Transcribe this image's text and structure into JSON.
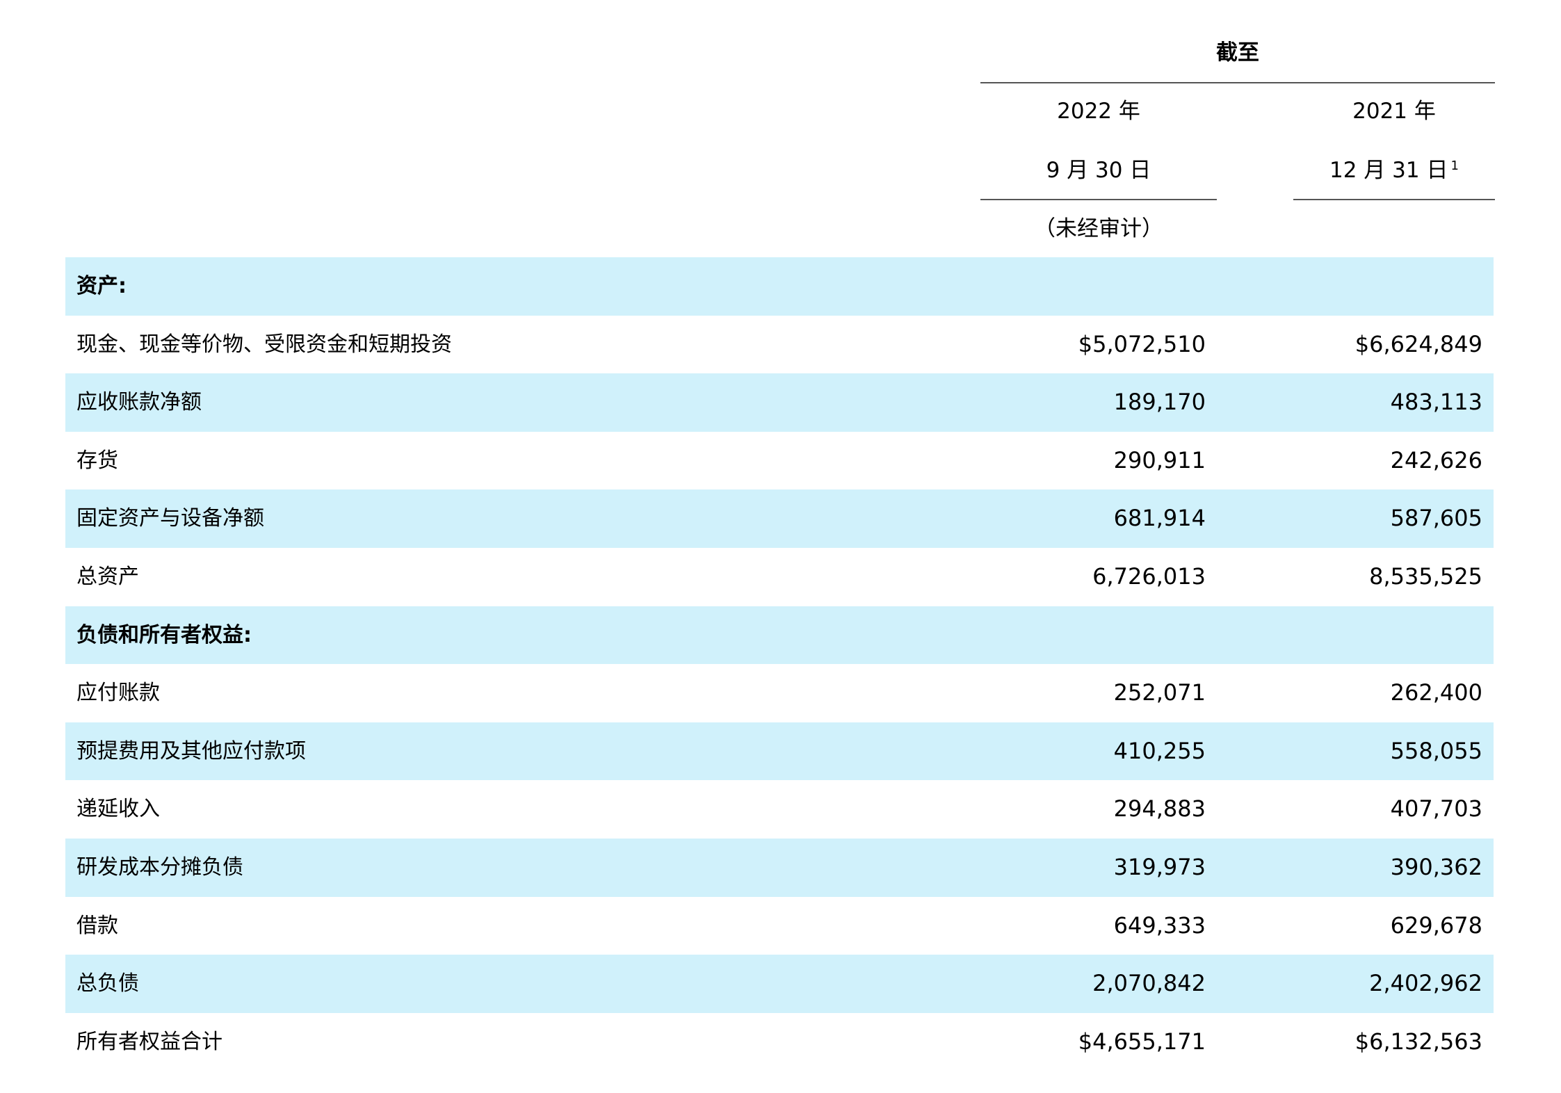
{
  "header": {
    "as_of": "截至",
    "col1_year": "2022 年",
    "col1_date": "9 月 30 日",
    "col1_note": "（未经审计）",
    "col2_year": "2021 年",
    "col2_date": "12 月 31 日",
    "col2_footnote": "1"
  },
  "rows": [
    {
      "label": "资产:",
      "v1": "",
      "v2": "",
      "section": true
    },
    {
      "label": "现金、现金等价物、受限资金和短期投资",
      "v1": "$5,072,510",
      "v2": "$6,624,849"
    },
    {
      "label": "应收账款净额",
      "v1": "189,170",
      "v2": "483,113"
    },
    {
      "label": "存货",
      "v1": "290,911",
      "v2": "242,626"
    },
    {
      "label": "固定资产与设备净额",
      "v1": "681,914",
      "v2": "587,605"
    },
    {
      "label": "总资产",
      "v1": "6,726,013",
      "v2": "8,535,525"
    },
    {
      "label": "负债和所有者权益:",
      "v1": "",
      "v2": "",
      "section": true
    },
    {
      "label": "应付账款",
      "v1": "252,071",
      "v2": "262,400"
    },
    {
      "label": "预提费用及其他应付款项",
      "v1": "410,255",
      "v2": "558,055"
    },
    {
      "label": "递延收入",
      "v1": "294,883",
      "v2": "407,703"
    },
    {
      "label": "研发成本分摊负债",
      "v1": "319,973",
      "v2": "390,362"
    },
    {
      "label": "借款",
      "v1": "649,333",
      "v2": "629,678"
    },
    {
      "label": "总负债",
      "v1": "2,070,842",
      "v2": "2,402,962"
    },
    {
      "label": "所有者权益合计",
      "v1": "$4,655,171",
      "v2": "$6,132,563"
    }
  ],
  "colors": {
    "row_shade": "#d0f1fb",
    "rule": "#555555",
    "text": "#000000"
  }
}
